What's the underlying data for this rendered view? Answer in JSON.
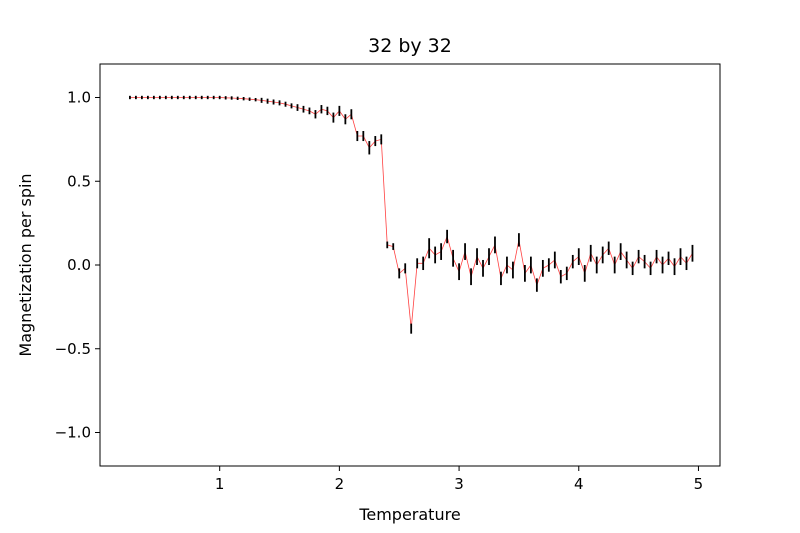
{
  "chart_data": {
    "type": "line",
    "title": "32 by 32",
    "xlabel": "Temperature",
    "ylabel": "Magnetization per spin",
    "xlim": [
      0.0,
      5.18
    ],
    "ylim": [
      -1.2,
      1.2
    ],
    "xticks": [
      1,
      2,
      3,
      4,
      5
    ],
    "xtick_labels": [
      "1",
      "2",
      "3",
      "4",
      "5"
    ],
    "yticks": [
      1.0,
      0.5,
      0.0,
      -0.5,
      -1.0
    ],
    "ytick_labels": [
      "1.0",
      "0.5",
      "0.0",
      "−0.5",
      "−1.0"
    ],
    "grid": false,
    "line_color": "#ff0000",
    "errorbar_color": "#000000",
    "series": [
      {
        "x": [
          0.25,
          0.3,
          0.35,
          0.4,
          0.45,
          0.5,
          0.55,
          0.6,
          0.65,
          0.7,
          0.75,
          0.8,
          0.85,
          0.9,
          0.95,
          1.0,
          1.05,
          1.1,
          1.15,
          1.2,
          1.25,
          1.3,
          1.35,
          1.4,
          1.45,
          1.5,
          1.55,
          1.6,
          1.65,
          1.7,
          1.75,
          1.8,
          1.85,
          1.9,
          1.95,
          2.0,
          2.05,
          2.1,
          2.15,
          2.2,
          2.25,
          2.3,
          2.35,
          2.4,
          2.45,
          2.5,
          2.55,
          2.6,
          2.65,
          2.7,
          2.75,
          2.8,
          2.85,
          2.9,
          2.95,
          3.0,
          3.05,
          3.1,
          3.15,
          3.2,
          3.25,
          3.3,
          3.35,
          3.4,
          3.45,
          3.5,
          3.55,
          3.6,
          3.65,
          3.7,
          3.75,
          3.8,
          3.85,
          3.9,
          3.95,
          4.0,
          4.05,
          4.1,
          4.15,
          4.2,
          4.25,
          4.3,
          4.35,
          4.4,
          4.45,
          4.5,
          4.55,
          4.6,
          4.65,
          4.7,
          4.75,
          4.8,
          4.85,
          4.9,
          4.95
        ],
        "y": [
          1.0,
          1.0,
          1.0,
          1.0,
          1.0,
          1.0,
          1.0,
          1.0,
          1.0,
          1.0,
          1.0,
          1.0,
          1.0,
          1.0,
          1.0,
          1.0,
          0.998,
          0.997,
          0.995,
          0.993,
          0.99,
          0.987,
          0.983,
          0.978,
          0.973,
          0.968,
          0.96,
          0.95,
          0.94,
          0.93,
          0.92,
          0.9,
          0.93,
          0.92,
          0.88,
          0.92,
          0.87,
          0.9,
          0.77,
          0.77,
          0.7,
          0.74,
          0.75,
          0.12,
          0.11,
          -0.05,
          -0.02,
          -0.38,
          0.01,
          0.01,
          0.1,
          0.06,
          0.08,
          0.17,
          0.04,
          -0.04,
          0.08,
          -0.07,
          0.05,
          -0.02,
          0.05,
          0.12,
          -0.08,
          0.0,
          -0.03,
          0.15,
          -0.05,
          0.0,
          -0.12,
          -0.02,
          0.0,
          0.03,
          -0.07,
          -0.05,
          0.02,
          0.05,
          -0.05,
          0.07,
          0.0,
          0.06,
          0.1,
          0.0,
          0.08,
          0.03,
          -0.02,
          0.05,
          0.02,
          -0.02,
          0.05,
          0.0,
          0.04,
          -0.01,
          0.05,
          0.01,
          0.07
        ],
        "err": [
          0.01,
          0.01,
          0.01,
          0.01,
          0.01,
          0.01,
          0.01,
          0.01,
          0.01,
          0.01,
          0.01,
          0.01,
          0.01,
          0.01,
          0.01,
          0.01,
          0.01,
          0.01,
          0.01,
          0.01,
          0.01,
          0.01,
          0.015,
          0.015,
          0.015,
          0.015,
          0.015,
          0.015,
          0.02,
          0.02,
          0.02,
          0.025,
          0.025,
          0.025,
          0.03,
          0.03,
          0.03,
          0.03,
          0.03,
          0.03,
          0.04,
          0.03,
          0.03,
          0.02,
          0.02,
          0.03,
          0.03,
          0.03,
          0.03,
          0.04,
          0.06,
          0.05,
          0.05,
          0.04,
          0.05,
          0.05,
          0.05,
          0.05,
          0.05,
          0.05,
          0.05,
          0.05,
          0.04,
          0.05,
          0.05,
          0.04,
          0.05,
          0.05,
          0.04,
          0.05,
          0.04,
          0.05,
          0.04,
          0.04,
          0.04,
          0.05,
          0.05,
          0.05,
          0.05,
          0.05,
          0.04,
          0.05,
          0.05,
          0.05,
          0.04,
          0.04,
          0.04,
          0.04,
          0.04,
          0.05,
          0.04,
          0.05,
          0.05,
          0.04,
          0.05
        ]
      }
    ]
  }
}
